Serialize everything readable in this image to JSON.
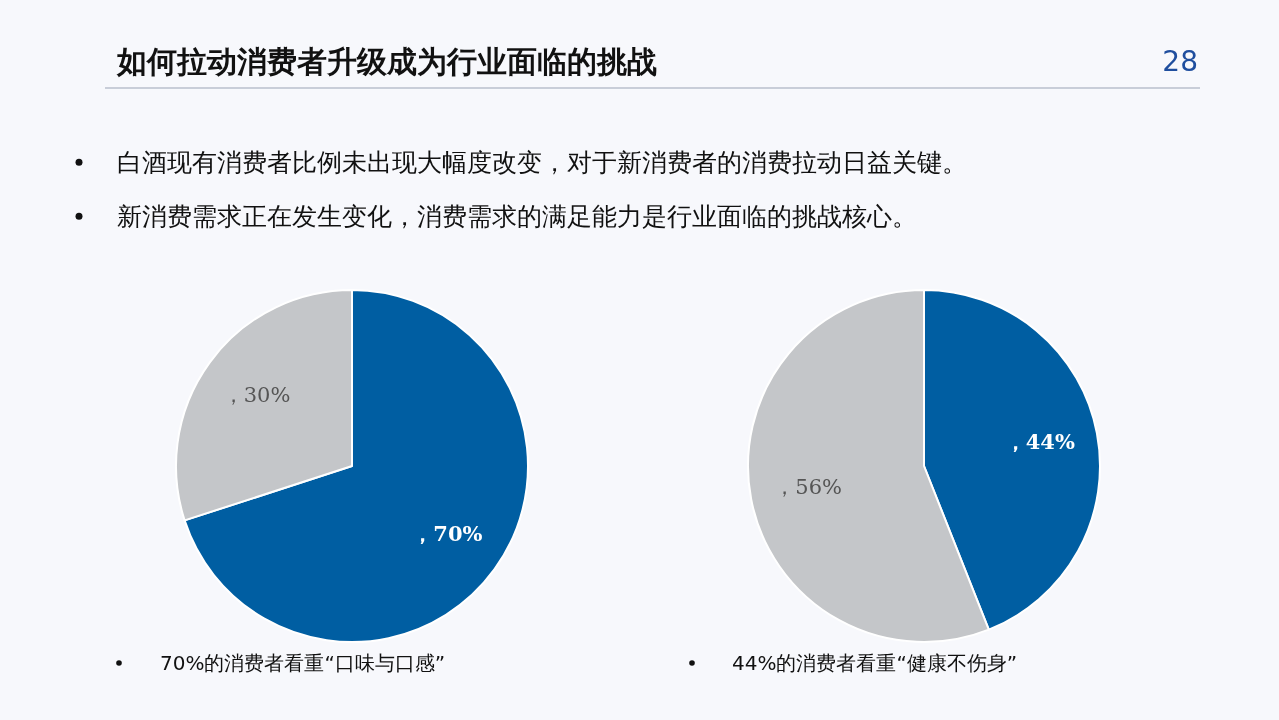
{
  "chart_data": [
    {
      "type": "pie",
      "title": "如何拉动消费者升级成为行业面临的挑战",
      "annotations": [
        "28",
        "白酒现有消费者比例未出现大幅度改变，对于新消费者的消费拉动日益关键。",
        "新消费需求正在发生变化，消费需求的满足能力是行业面临的挑战核心。",
        "70%的消费者看重“口味与口感”"
      ],
      "categories": [
        null,
        null
      ],
      "values": [
        70,
        30
      ],
      "colors": [
        "#005ea2",
        "#c4c6c9"
      ],
      "value_labels": [
        "，70%",
        "，30%"
      ]
    },
    {
      "type": "pie",
      "annotations": [
        "44%的消费者看重“健康不伤身”"
      ],
      "categories": [
        null,
        null
      ],
      "values": [
        44,
        56
      ],
      "colors": [
        "#005ea2",
        "#c4c6c9"
      ],
      "value_labels": [
        "，44%",
        "，56%"
      ]
    }
  ]
}
